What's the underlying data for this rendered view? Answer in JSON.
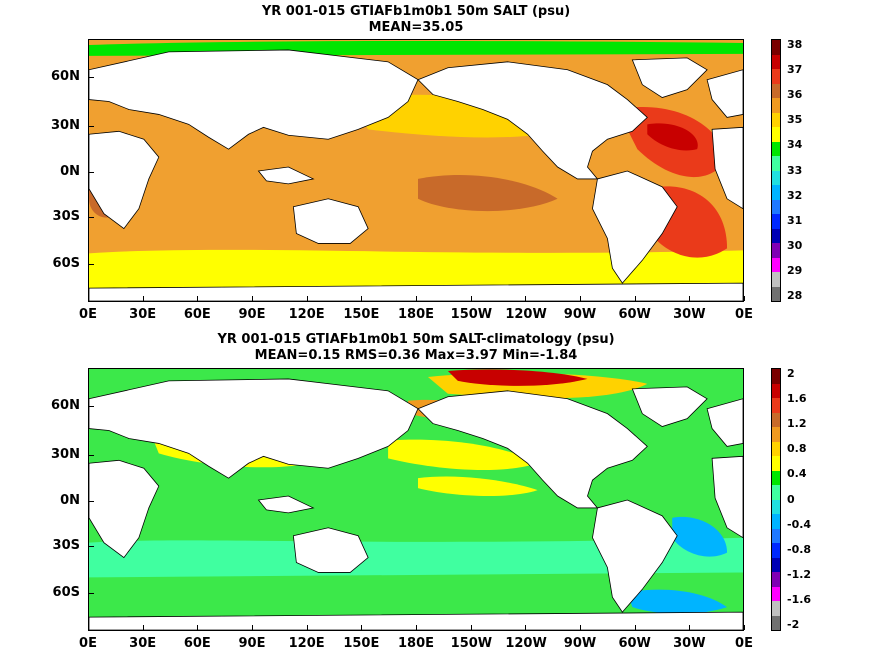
{
  "panels": [
    {
      "title_line1": "YR 001-015 GTIAFb1m0b1 50m SALT (psu)",
      "title_line2": "MEAN=35.05",
      "lat_labels": [
        "60N",
        "30N",
        "0N",
        "30S",
        "60S"
      ],
      "lon_labels": [
        "0E",
        "30E",
        "60E",
        "90E",
        "120E",
        "150E",
        "180E",
        "150W",
        "120W",
        "90W",
        "60W",
        "30W",
        "0E"
      ],
      "colorbar": {
        "labels": [
          "38",
          "37",
          "36",
          "35",
          "34",
          "33",
          "32",
          "31",
          "30",
          "29",
          "28"
        ],
        "colors": [
          "#7a0000",
          "#c80000",
          "#ea3a1a",
          "#c86a2a",
          "#f09a20",
          "#ffd200",
          "#ffff00",
          "#00e600",
          "#40ffa0",
          "#20e0e0",
          "#00b4ff",
          "#1e78ff",
          "#0028ff",
          "#0000b4",
          "#8000b4",
          "#ff00ff",
          "#c0c0c0",
          "#707070"
        ]
      },
      "fields": {
        "ocean": "#f0a030",
        "polar": "#ffff00",
        "north": "#ffd200"
      }
    },
    {
      "title_line1": "YR 001-015 GTIAFb1m0b1 50m SALT-climatology (psu)",
      "title_line2": "MEAN=0.15   RMS=0.36   Max=3.97   Min=-1.84",
      "lat_labels": [
        "60N",
        "30N",
        "0N",
        "30S",
        "60S"
      ],
      "lon_labels": [
        "0E",
        "30E",
        "60E",
        "90E",
        "120E",
        "150E",
        "180E",
        "150W",
        "120W",
        "90W",
        "60W",
        "30W",
        "0E"
      ],
      "colorbar": {
        "labels": [
          "2",
          "1.6",
          "1.2",
          "0.8",
          "0.4",
          "0",
          "-0.4",
          "-0.8",
          "-1.2",
          "-1.6",
          "-2"
        ],
        "colors": [
          "#7a0000",
          "#c80000",
          "#ea3a1a",
          "#c86a2a",
          "#f09a20",
          "#ffd200",
          "#ffff00",
          "#00e600",
          "#40ffa0",
          "#20e0e0",
          "#00b4ff",
          "#1e78ff",
          "#0028ff",
          "#0000b4",
          "#8000b4",
          "#ff00ff",
          "#c0c0c0",
          "#707070"
        ]
      },
      "fields": {
        "ocean": "#3ce84a",
        "polar": "#20e0e0",
        "north": "#ffd200"
      }
    }
  ]
}
